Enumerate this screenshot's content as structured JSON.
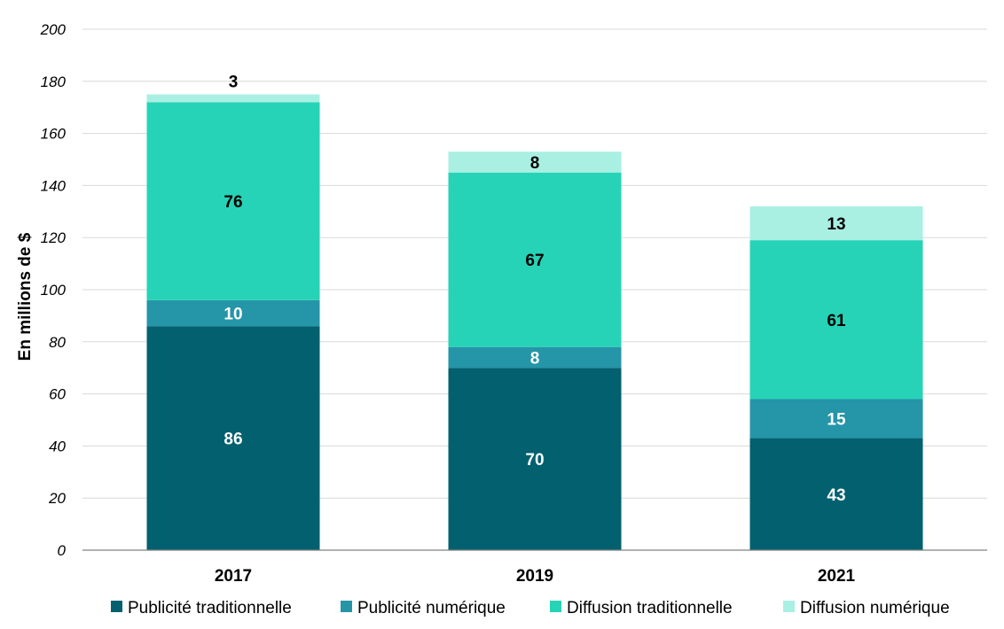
{
  "chart_data": {
    "type": "bar",
    "stacked": true,
    "categories": [
      "2017",
      "2019",
      "2021"
    ],
    "series": [
      {
        "name": "Publicité traditionnelle",
        "values": [
          86,
          70,
          43
        ],
        "color": "#02606F",
        "label_color": "#FFFFFF"
      },
      {
        "name": "Publicité numérique",
        "values": [
          10,
          8,
          15
        ],
        "color": "#2595A8",
        "label_color": "#FFFFFF"
      },
      {
        "name": "Diffusion traditionnelle",
        "values": [
          76,
          67,
          61
        ],
        "color": "#27D3B6",
        "label_color": "#000000"
      },
      {
        "name": "Diffusion numérique",
        "values": [
          3,
          8,
          13
        ],
        "color": "#A9F0E3",
        "label_color": "#000000"
      }
    ],
    "ylabel": "En millions de $",
    "xlabel": "",
    "ylim": [
      0,
      200
    ],
    "yticks": [
      "0",
      "20",
      "40",
      "60",
      "80",
      "100",
      "120",
      "140",
      "160",
      "180",
      "200"
    ],
    "grid": true,
    "legend_position": "bottom"
  }
}
